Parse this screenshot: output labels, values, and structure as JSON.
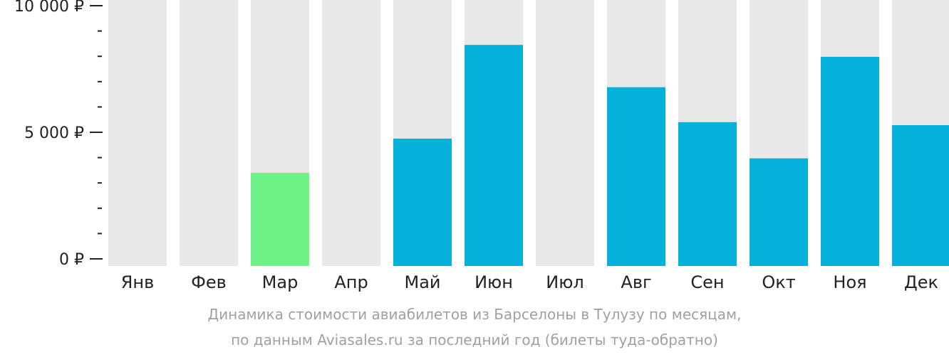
{
  "chart_data": {
    "type": "bar",
    "categories": [
      "Янв",
      "Фев",
      "Мар",
      "Апр",
      "Май",
      "Июн",
      "Июл",
      "Авг",
      "Сен",
      "Окт",
      "Ноя",
      "Дек"
    ],
    "values": [
      null,
      null,
      3400,
      null,
      4750,
      8450,
      null,
      6780,
      5400,
      3970,
      7980,
      5280
    ],
    "highlight_index": 2,
    "ylim": [
      0,
      10000
    ],
    "y_ticks": [
      {
        "value": 10000,
        "label": "10 000 ₽"
      },
      {
        "value": 5000,
        "label": "5 000 ₽"
      },
      {
        "value": 0,
        "label": "0 ₽"
      }
    ],
    "y_minor_step": 1000,
    "grid": false,
    "legend": "none",
    "title": "",
    "xlabel": "",
    "ylabel": ""
  },
  "caption": {
    "line1": "Динамика стоимости авиабилетов из Барселоны в Тулузу по месяцам,",
    "line2": "по данным Aviasales.ru за последний год (билеты туда-обратно)"
  },
  "colors": {
    "bar": "#03b1da",
    "highlight": "#6cf285",
    "background_bar": "#e8e8e8",
    "axis": "#222222",
    "caption": "#a0a0a0"
  }
}
